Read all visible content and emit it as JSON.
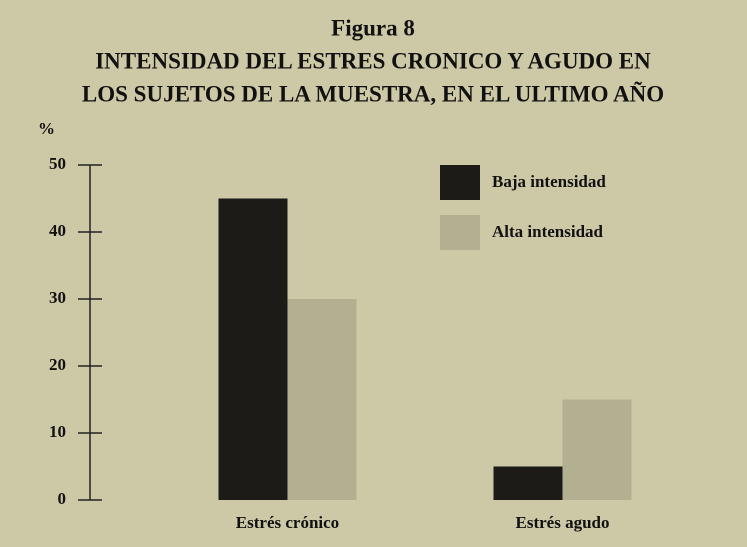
{
  "chart_data": {
    "type": "bar",
    "figure_label": "Figura 8",
    "title": [
      "INTENSIDAD DEL ESTRES CRONICO Y AGUDO EN",
      "LOS SUJETOS DE LA MUESTRA, EN EL ULTIMO AÑO"
    ],
    "y_label": "%",
    "categories": [
      "Estrés crónico",
      "Estrés agudo"
    ],
    "series": [
      {
        "name": "Baja intensidad",
        "color": "#1c1b18",
        "values": [
          45,
          5
        ]
      },
      {
        "name": "Alta intensidad",
        "color": "#b3b091",
        "values": [
          30,
          15
        ]
      }
    ],
    "ylim": [
      0,
      50
    ],
    "yticks": [
      0,
      10,
      20,
      30,
      40,
      50
    ]
  }
}
